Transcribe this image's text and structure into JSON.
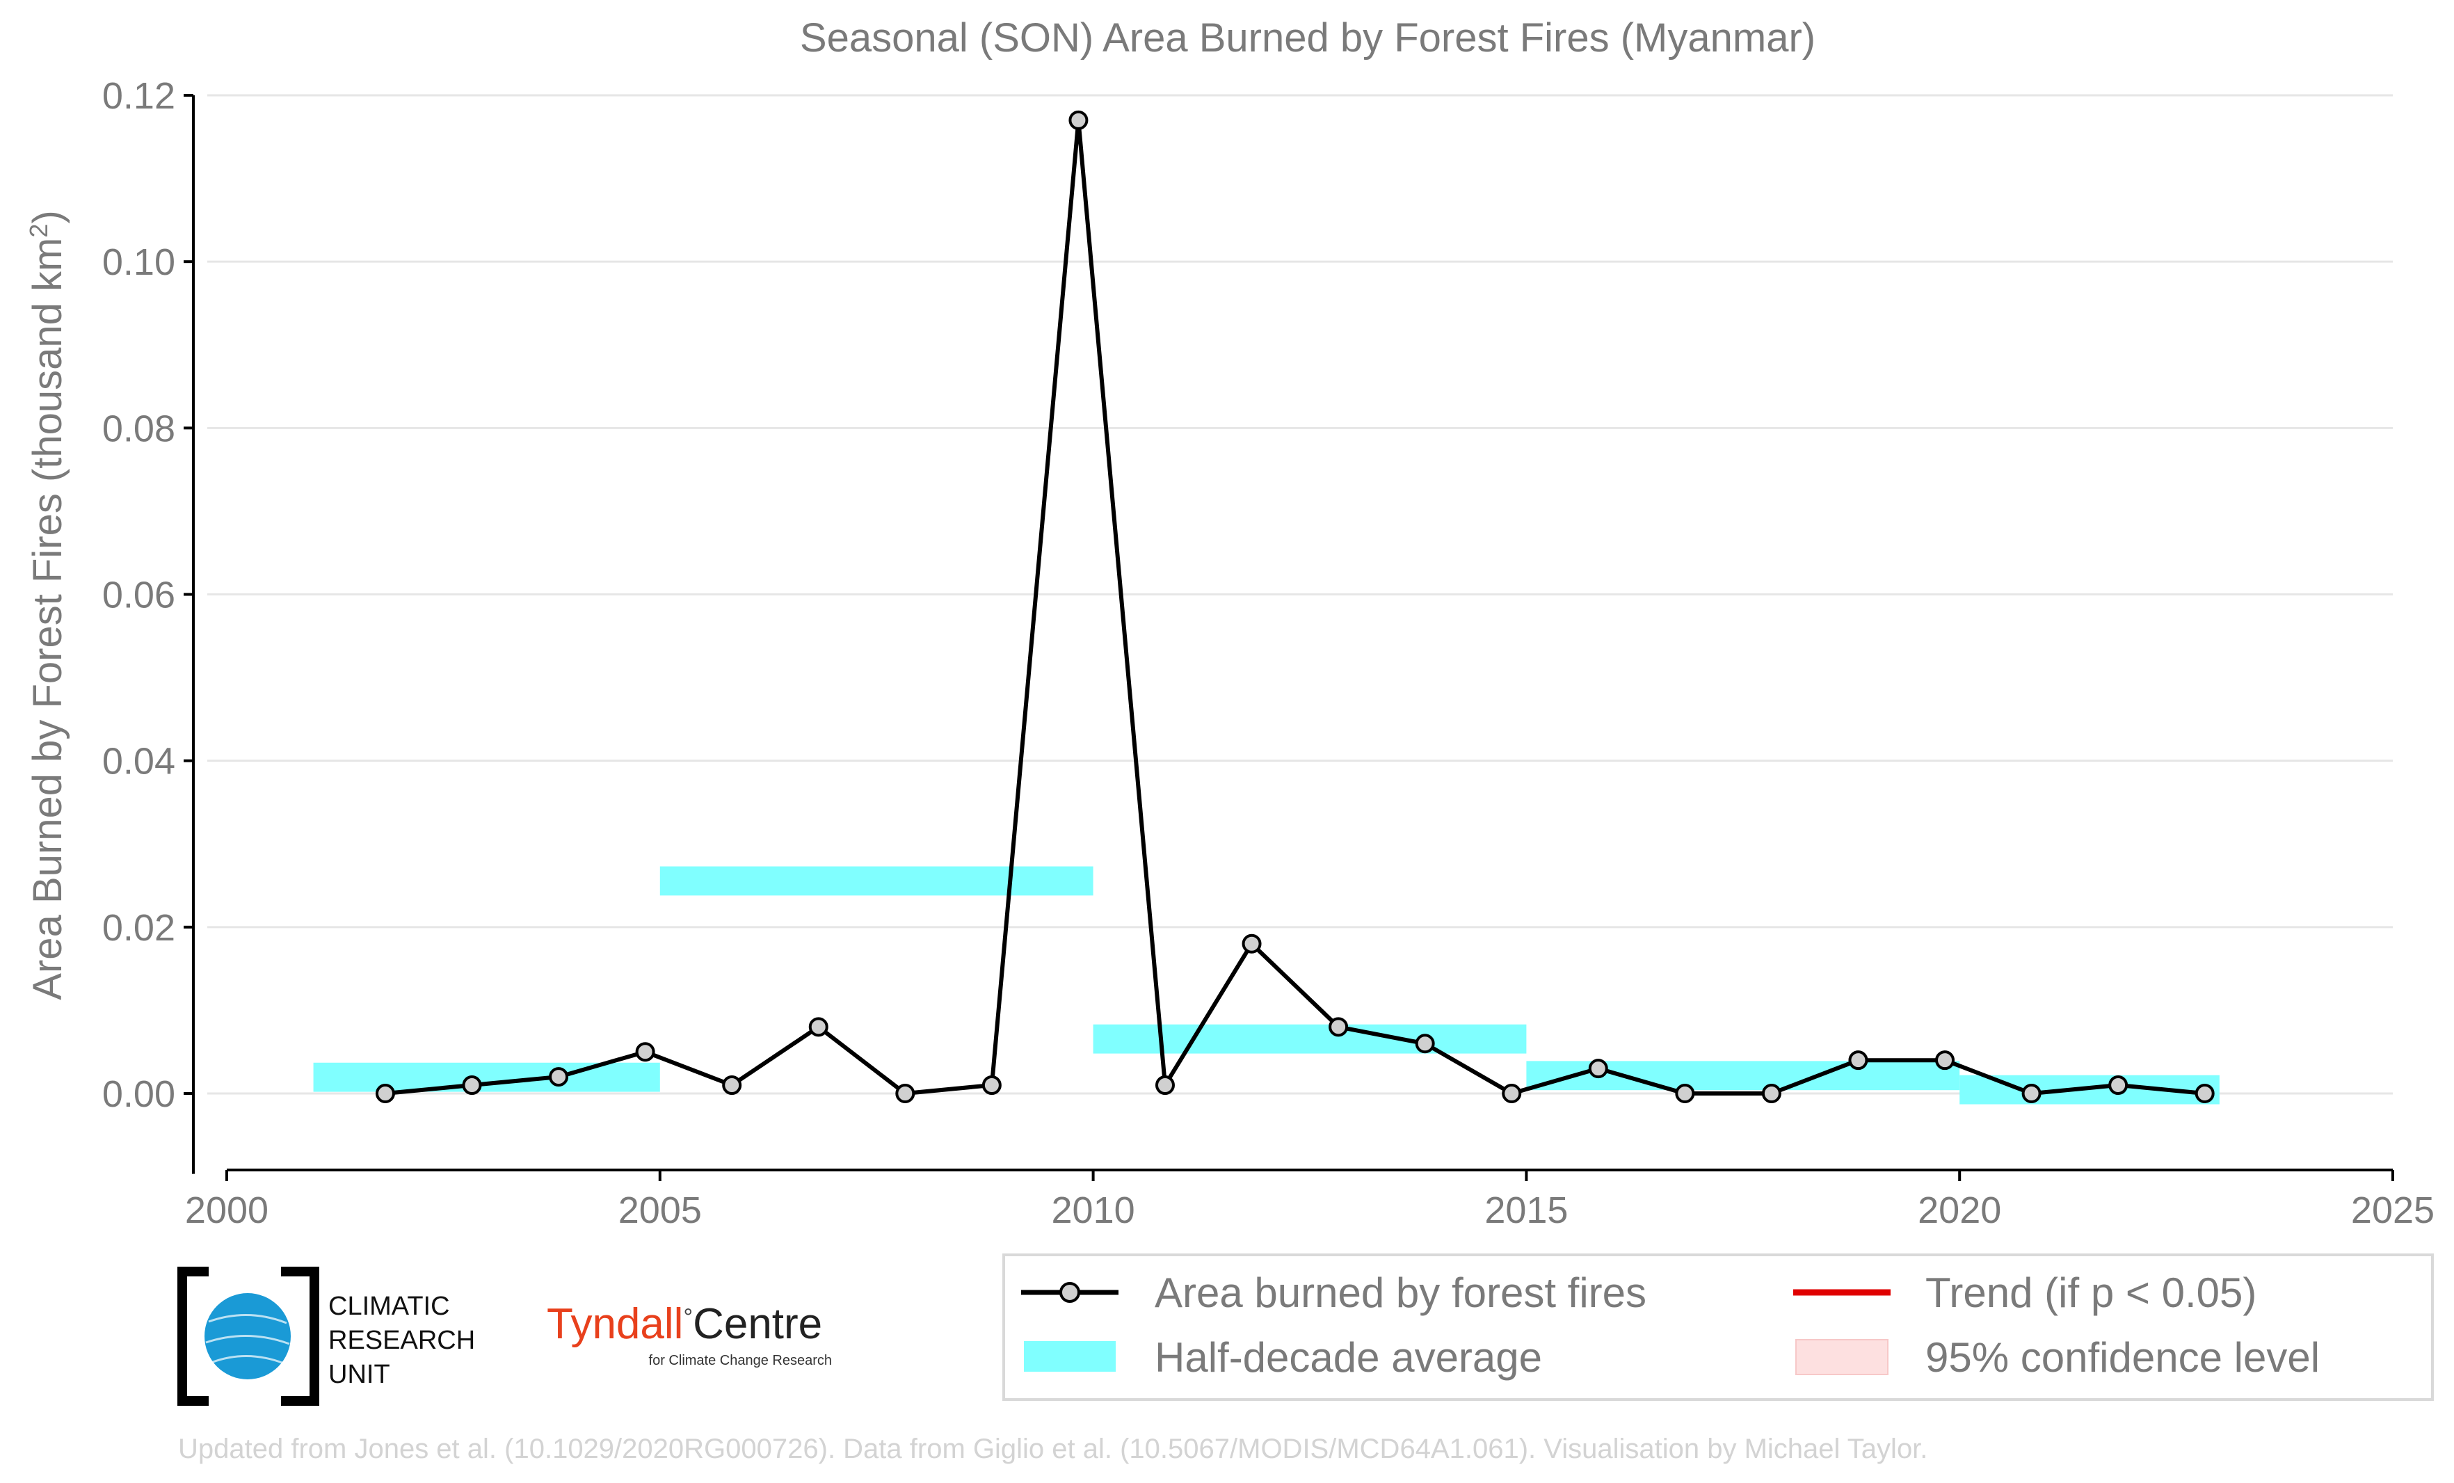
{
  "chart_data": {
    "type": "line",
    "title": "Seasonal (SON) Area Burned by Forest Fires (Myanmar)",
    "xlabel": "",
    "ylabel": "Area Burned by Forest Fires (thousand km²)",
    "xlim": [
      2000,
      2025
    ],
    "ylim": [
      -0.009,
      0.12
    ],
    "x_ticks": [
      2000,
      2005,
      2010,
      2015,
      2020,
      2025
    ],
    "y_ticks": [
      0.0,
      0.02,
      0.04,
      0.06,
      0.08,
      0.1,
      0.12
    ],
    "y_tick_labels": [
      "0.00",
      "0.02",
      "0.04",
      "0.06",
      "0.08",
      "0.10",
      "0.12"
    ],
    "grid": "horizontal",
    "legend_position": "bottom-right",
    "series": [
      {
        "name": "Area burned by forest fires",
        "color": "#000000",
        "marker_fill": "#d0d0d0",
        "x": [
          2001.83,
          2002.83,
          2003.83,
          2004.83,
          2005.83,
          2006.83,
          2007.83,
          2008.83,
          2009.83,
          2010.83,
          2011.83,
          2012.83,
          2013.83,
          2014.83,
          2015.83,
          2016.83,
          2017.83,
          2018.83,
          2019.83,
          2020.83,
          2021.83,
          2022.83
        ],
        "y": [
          0.0,
          0.001,
          0.002,
          0.005,
          0.001,
          0.008,
          0.0,
          0.001,
          0.117,
          0.001,
          0.018,
          0.008,
          0.006,
          0.0,
          0.003,
          0.0,
          0.0,
          0.004,
          0.004,
          0.0,
          0.001,
          0.0
        ]
      }
    ],
    "half_decade_average": {
      "name": "Half-decade average",
      "color": "#80ffff",
      "periods": [
        {
          "x_start": 2001.0,
          "x_end": 2005.0,
          "low": 0.0002,
          "high": 0.0037
        },
        {
          "x_start": 2005.0,
          "x_end": 2010.0,
          "low": 0.0238,
          "high": 0.0273
        },
        {
          "x_start": 2010.0,
          "x_end": 2015.0,
          "low": 0.0048,
          "high": 0.0083
        },
        {
          "x_start": 2015.0,
          "x_end": 2020.0,
          "low": 0.0004,
          "high": 0.0039
        },
        {
          "x_start": 2020.0,
          "x_end": 2023.0,
          "low": -0.0013,
          "high": 0.0022
        }
      ]
    },
    "legend": [
      {
        "label": "Area burned by forest fires",
        "kind": "line-marker",
        "color": "#000000"
      },
      {
        "label": "Trend (if p < 0.05)",
        "kind": "line",
        "color": "#e00000"
      },
      {
        "label": "Half-decade average",
        "kind": "patch",
        "color": "#80ffff"
      },
      {
        "label": "95% confidence level",
        "kind": "patch",
        "color": "#fde0e0"
      }
    ]
  },
  "logos": {
    "cru": {
      "line1": "CLIMATIC",
      "line2": "RESEARCH",
      "line3": "UNIT",
      "globe_color": "#1a9ad6"
    },
    "tyndall": {
      "name": "Tyndall",
      "degree": "°",
      "centre": "Centre",
      "subtitle": "for Climate Change Research",
      "red": "#e8401c"
    }
  },
  "credit": "Updated from Jones et al. (10.1029/2020RG000726). Data from Giglio et al. (10.5067/MODIS/MCD64A1.061). Visualisation by Michael Taylor."
}
